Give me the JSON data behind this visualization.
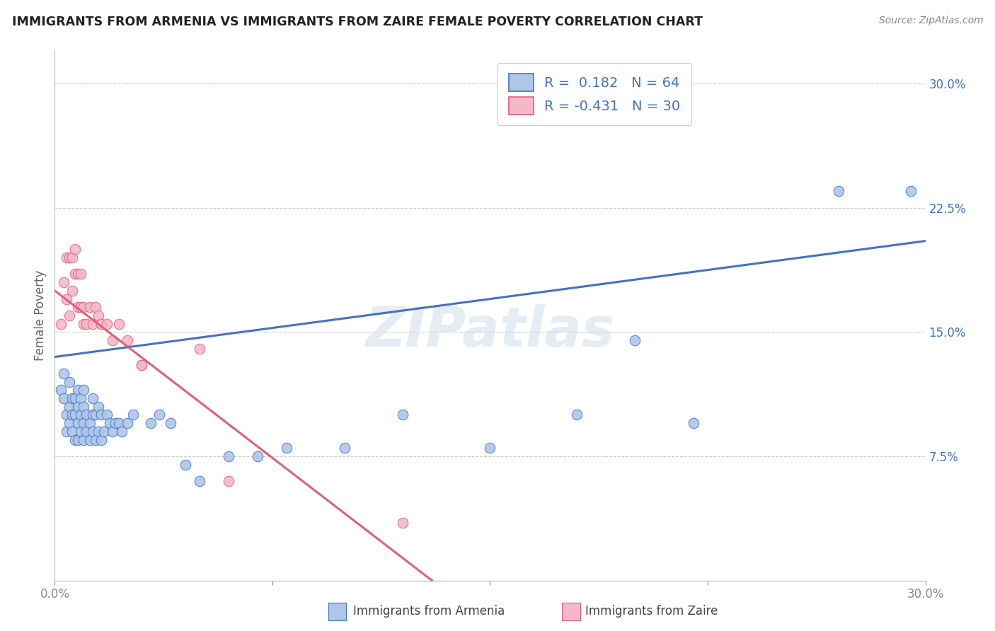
{
  "title": "IMMIGRANTS FROM ARMENIA VS IMMIGRANTS FROM ZAIRE FEMALE POVERTY CORRELATION CHART",
  "source": "Source: ZipAtlas.com",
  "ylabel": "Female Poverty",
  "armenia_R": 0.182,
  "armenia_N": 64,
  "zaire_R": -0.431,
  "zaire_N": 30,
  "xlim": [
    0.0,
    0.3
  ],
  "ylim": [
    0.0,
    0.32
  ],
  "armenia_color": "#aec6e8",
  "zaire_color": "#f4b8c8",
  "armenia_line_color": "#4472c4",
  "zaire_line_color": "#e0607a",
  "background_color": "#ffffff",
  "grid_color": "#cccccc",
  "armenia_x": [
    0.002,
    0.003,
    0.003,
    0.004,
    0.004,
    0.005,
    0.005,
    0.005,
    0.006,
    0.006,
    0.006,
    0.007,
    0.007,
    0.007,
    0.008,
    0.008,
    0.008,
    0.008,
    0.009,
    0.009,
    0.009,
    0.01,
    0.01,
    0.01,
    0.01,
    0.011,
    0.011,
    0.012,
    0.012,
    0.013,
    0.013,
    0.013,
    0.014,
    0.014,
    0.015,
    0.015,
    0.016,
    0.016,
    0.017,
    0.018,
    0.019,
    0.02,
    0.021,
    0.022,
    0.023,
    0.025,
    0.027,
    0.03,
    0.033,
    0.036,
    0.04,
    0.045,
    0.05,
    0.06,
    0.07,
    0.08,
    0.1,
    0.12,
    0.15,
    0.18,
    0.2,
    0.22,
    0.27,
    0.295
  ],
  "armenia_y": [
    0.115,
    0.125,
    0.11,
    0.1,
    0.09,
    0.095,
    0.105,
    0.12,
    0.09,
    0.1,
    0.11,
    0.085,
    0.1,
    0.11,
    0.085,
    0.095,
    0.105,
    0.115,
    0.09,
    0.1,
    0.11,
    0.085,
    0.095,
    0.105,
    0.115,
    0.09,
    0.1,
    0.085,
    0.095,
    0.1,
    0.09,
    0.11,
    0.085,
    0.1,
    0.09,
    0.105,
    0.085,
    0.1,
    0.09,
    0.1,
    0.095,
    0.09,
    0.095,
    0.095,
    0.09,
    0.095,
    0.1,
    0.13,
    0.095,
    0.1,
    0.095,
    0.07,
    0.06,
    0.075,
    0.075,
    0.08,
    0.08,
    0.1,
    0.08,
    0.1,
    0.145,
    0.095,
    0.235,
    0.235
  ],
  "zaire_x": [
    0.002,
    0.003,
    0.004,
    0.004,
    0.005,
    0.005,
    0.006,
    0.006,
    0.007,
    0.007,
    0.008,
    0.008,
    0.009,
    0.009,
    0.01,
    0.01,
    0.011,
    0.012,
    0.013,
    0.014,
    0.015,
    0.016,
    0.018,
    0.02,
    0.022,
    0.025,
    0.03,
    0.05,
    0.06,
    0.12
  ],
  "zaire_y": [
    0.155,
    0.18,
    0.195,
    0.17,
    0.195,
    0.16,
    0.195,
    0.175,
    0.185,
    0.2,
    0.185,
    0.165,
    0.185,
    0.165,
    0.165,
    0.155,
    0.155,
    0.165,
    0.155,
    0.165,
    0.16,
    0.155,
    0.155,
    0.145,
    0.155,
    0.145,
    0.13,
    0.14,
    0.06,
    0.035
  ]
}
